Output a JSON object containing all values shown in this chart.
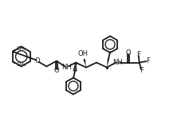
{
  "lc": "#1a1a1a",
  "lw": 1.3,
  "fs": 6.0,
  "figw": 2.42,
  "figh": 1.62,
  "dpi": 100,
  "xlim": [
    0,
    12
  ],
  "ylim": [
    0,
    8
  ]
}
